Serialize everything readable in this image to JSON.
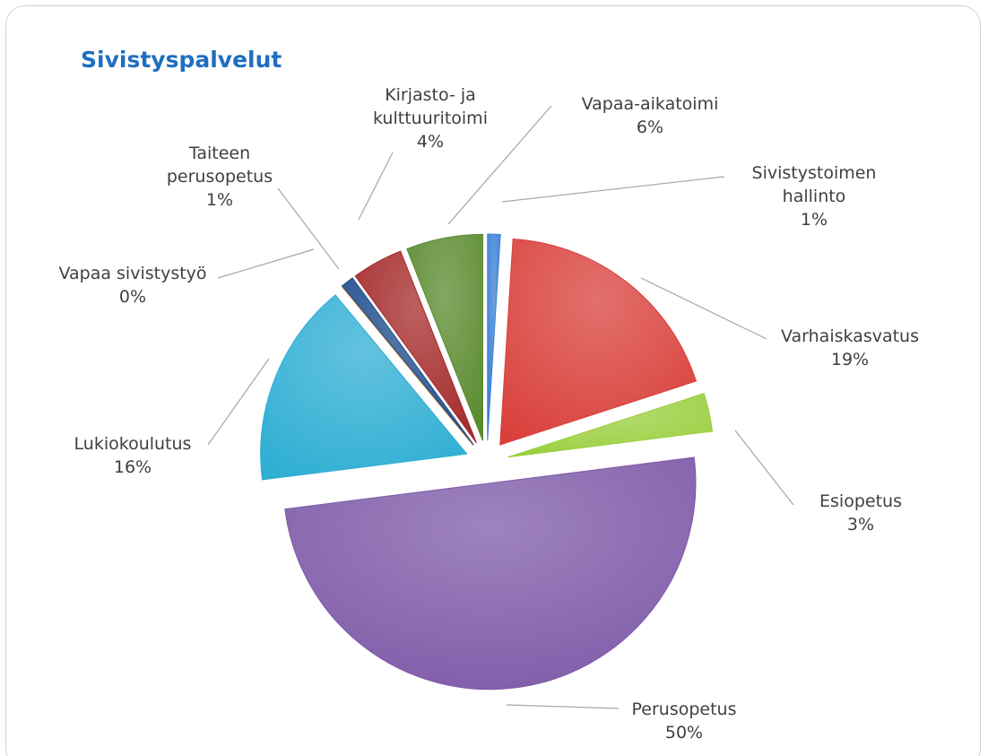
{
  "chart_data": {
    "type": "pie",
    "title": "Sivistyspalvelut",
    "categories": [
      "Sivistystoimen hallinto",
      "Varhaiskasvatus",
      "Esiopetus",
      "Perusopetus",
      "Lukiokoulutus",
      "Vapaa sivistystyö",
      "Taiteen perusopetus",
      "Kirjasto- ja kulttuuritoimi",
      "Vapaa-aikatoimi"
    ],
    "values": [
      1,
      19,
      3,
      50,
      16,
      0,
      1,
      4,
      6
    ],
    "value_labels": [
      "1%",
      "19%",
      "3%",
      "50%",
      "16%",
      "0%",
      "1%",
      "4%",
      "6%"
    ],
    "colors": [
      "#3a7fd5",
      "#d9403b",
      "#9bcf3f",
      "#7e5aa8",
      "#2eaed3",
      "#e88a2e",
      "#1f4e8c",
      "#a52a2a",
      "#5a8a2e"
    ]
  }
}
